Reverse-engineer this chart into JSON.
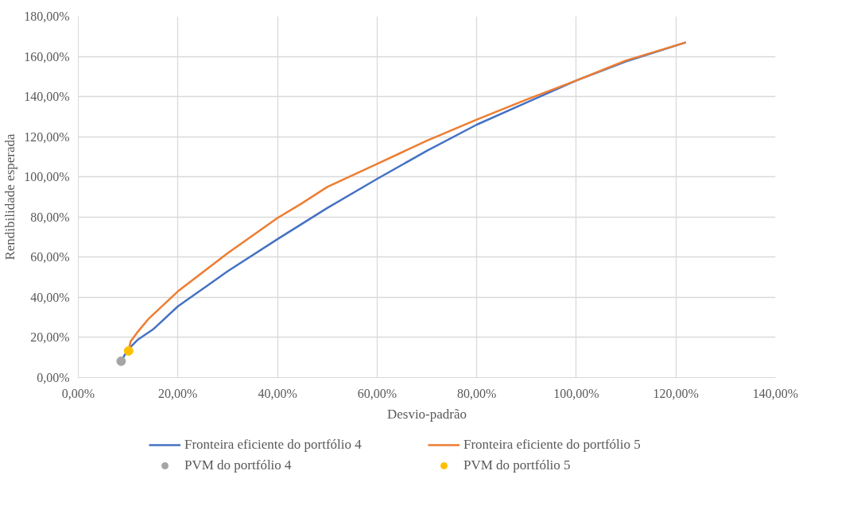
{
  "chart_data": {
    "type": "line",
    "xlabel": "Desvio-padrão",
    "ylabel": "Rendibilidade esperada",
    "xlim": [
      0,
      140
    ],
    "ylim": [
      0,
      180
    ],
    "xticks": [
      {
        "value": 0,
        "label": "0,00%"
      },
      {
        "value": 20,
        "label": "20,00%"
      },
      {
        "value": 40,
        "label": "40,00%"
      },
      {
        "value": 60,
        "label": "60,00%"
      },
      {
        "value": 80,
        "label": "80,00%"
      },
      {
        "value": 100,
        "label": "100,00%"
      },
      {
        "value": 120,
        "label": "120,00%"
      },
      {
        "value": 140,
        "label": "140,00%"
      }
    ],
    "yticks": [
      {
        "value": 0,
        "label": "0,00%"
      },
      {
        "value": 20,
        "label": "20,00%"
      },
      {
        "value": 40,
        "label": "40,00%"
      },
      {
        "value": 60,
        "label": "60,00%"
      },
      {
        "value": 80,
        "label": "80,00%"
      },
      {
        "value": 100,
        "label": "100,00%"
      },
      {
        "value": 120,
        "label": "120,00%"
      },
      {
        "value": 140,
        "label": "140,00%"
      },
      {
        "value": 160,
        "label": "160,00%"
      },
      {
        "value": 180,
        "label": "180,00%"
      }
    ],
    "grid": true,
    "legend": "bottom",
    "series": [
      {
        "name": "Fronteira eficiente do portfólio 4",
        "color": "#4472c4",
        "x": [
          9.0,
          10,
          12,
          15,
          20,
          30,
          40,
          50,
          60,
          70,
          80,
          90,
          100,
          110,
          122
        ],
        "values": [
          10,
          14,
          19,
          24,
          35.5,
          53,
          69,
          84.5,
          99,
          113,
          126,
          137,
          148,
          157.5,
          167
        ]
      },
      {
        "name": "Fronteira eficiente do portfólio 5",
        "color": "#ed7d31",
        "x": [
          10.1,
          10.5,
          12,
          14,
          20,
          30,
          40,
          45,
          50,
          60,
          70,
          80,
          90,
          100,
          110,
          122
        ],
        "values": [
          13.5,
          18,
          23,
          29,
          43,
          62,
          79.5,
          87,
          95,
          106.5,
          118,
          128.5,
          138.5,
          148,
          158,
          167
        ]
      },
      {
        "name": "PVM do portfólio 4",
        "type": "scatter",
        "color": "#a5a5a5",
        "x": [
          8.6
        ],
        "values": [
          8.2
        ]
      },
      {
        "name": "PVM do portfólio 5",
        "type": "scatter",
        "color": "#ffc000",
        "x": [
          10.1
        ],
        "values": [
          13.3
        ]
      }
    ]
  }
}
